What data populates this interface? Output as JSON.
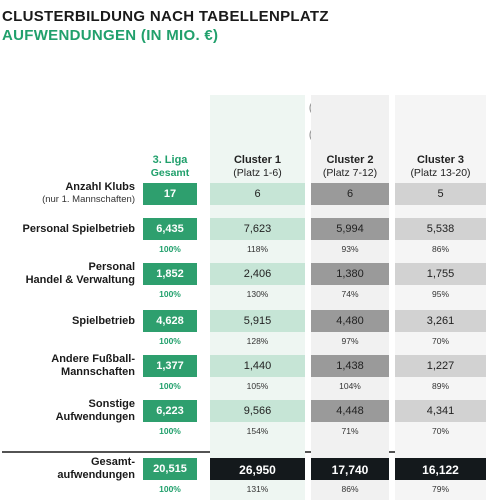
{
  "header": {
    "title": "CLUSTERBILDUNG NACH TABELLENPLATZ",
    "subtitle": "AUFWENDUNGEN (IN MIO. €)"
  },
  "columns": [
    {
      "name": "3. Liga",
      "sub": "Gesamt"
    },
    {
      "name": "Cluster 1",
      "sub": "(Platz 1-6)"
    },
    {
      "name": "Cluster 2",
      "sub": "(Platz 7-12)"
    },
    {
      "name": "Cluster 3",
      "sub": "(Platz 13-20)"
    }
  ],
  "rows": [
    {
      "label": [
        "Anzahl Klubs"
      ],
      "note": "(nur 1. Mannschaften)",
      "values": [
        "17",
        "6",
        "6",
        "5"
      ]
    },
    {
      "label": [
        "Personal Spielbetrieb"
      ],
      "values": [
        "6,435",
        "7,623",
        "5,994",
        "5,538"
      ],
      "percents": [
        "100%",
        "118%",
        "93%",
        "86%"
      ]
    },
    {
      "label": [
        "Personal",
        "Handel & Verwaltung"
      ],
      "values": [
        "1,852",
        "2,406",
        "1,380",
        "1,755"
      ],
      "percents": [
        "100%",
        "130%",
        "74%",
        "95%"
      ]
    },
    {
      "label": [
        "Spielbetrieb"
      ],
      "values": [
        "4,628",
        "5,915",
        "4,480",
        "3,261"
      ],
      "percents": [
        "100%",
        "128%",
        "97%",
        "70%"
      ]
    },
    {
      "label": [
        "Andere Fußball-",
        "Mannschaften"
      ],
      "values": [
        "1,377",
        "1,440",
        "1,438",
        "1,227"
      ],
      "percents": [
        "100%",
        "105%",
        "104%",
        "89%"
      ]
    },
    {
      "label": [
        "Sonstige",
        "Aufwendungen"
      ],
      "values": [
        "6,223",
        "9,566",
        "4,448",
        "4,341"
      ],
      "percents": [
        "100%",
        "154%",
        "71%",
        "70%"
      ]
    },
    {
      "label": [
        "Gesamt-",
        "aufwendungen"
      ],
      "values": [
        "20,515",
        "26,950",
        "17,740",
        "16,122"
      ],
      "percents": [
        "100%",
        "131%",
        "86%",
        "79%"
      ]
    }
  ]
}
